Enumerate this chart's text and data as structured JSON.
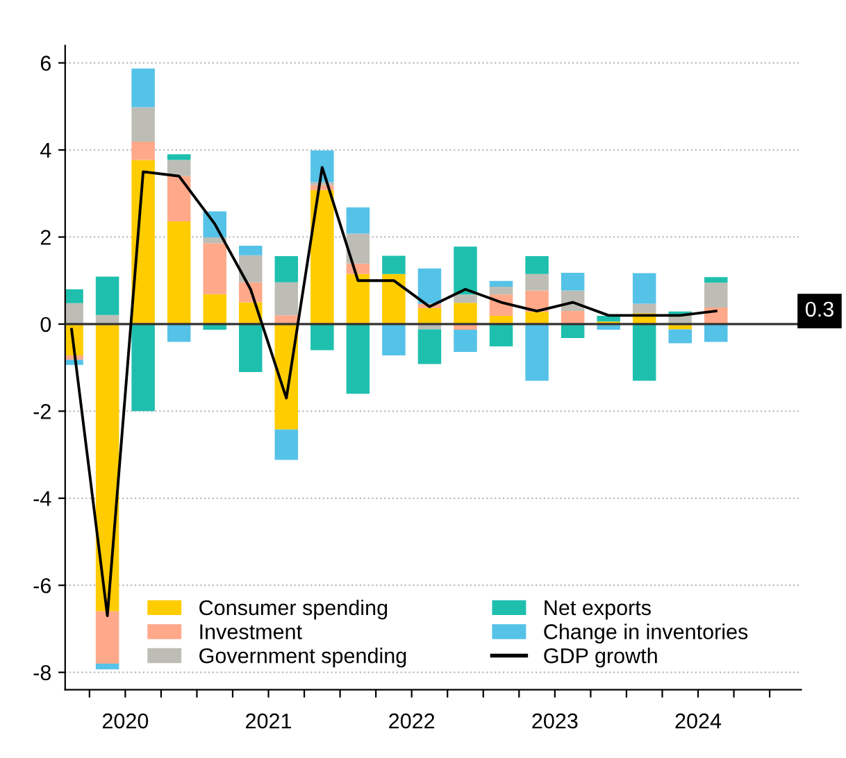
{
  "chart_data": {
    "type": "bar",
    "stacked": true,
    "x": [
      2020.125,
      2020.375,
      2020.625,
      2020.875,
      2021.125,
      2021.375,
      2021.625,
      2021.875,
      2022.125,
      2022.375,
      2022.625,
      2022.875,
      2023.125,
      2023.375,
      2023.625,
      2023.875,
      2024.125,
      2024.375,
      2024.625
    ],
    "series": [
      {
        "name": "Consumer spending",
        "color": "#ffcc00",
        "values": [
          -0.72,
          -6.6,
          3.77,
          2.36,
          0.69,
          0.5,
          -2.42,
          3.08,
          1.15,
          1.15,
          0.37,
          0.49,
          0.19,
          0.28,
          0.0,
          0.06,
          0.25,
          -0.12,
          0.0
        ]
      },
      {
        "name": "Investment",
        "color": "#ffa98a",
        "values": [
          -0.1,
          -1.2,
          0.42,
          1.04,
          1.17,
          0.46,
          0.2,
          0.11,
          0.24,
          0.0,
          0.1,
          -0.13,
          0.49,
          0.49,
          0.3,
          0.0,
          0.0,
          0.0,
          0.38
        ]
      },
      {
        "name": "Government spending",
        "color": "#bdbdb5",
        "values": [
          0.48,
          0.21,
          0.79,
          0.37,
          0.13,
          0.62,
          0.76,
          0.07,
          0.69,
          0.0,
          -0.12,
          0.19,
          0.18,
          0.38,
          0.47,
          0.0,
          0.22,
          0.2,
          0.57
        ]
      },
      {
        "name": "Net exports",
        "color": "#1fbfae",
        "values": [
          0.32,
          0.88,
          -2.0,
          0.13,
          -0.13,
          -1.1,
          0.6,
          -0.6,
          -1.6,
          0.42,
          -0.8,
          1.1,
          -0.51,
          0.41,
          -0.32,
          0.13,
          -1.3,
          0.09,
          0.13
        ]
      },
      {
        "name": "Change in inventories",
        "color": "#55c2e8",
        "values": [
          -0.12,
          -0.13,
          0.89,
          -0.41,
          0.6,
          0.22,
          -0.7,
          0.73,
          0.6,
          -0.72,
          0.81,
          -0.51,
          0.13,
          -1.3,
          0.41,
          -0.13,
          0.7,
          -0.32,
          -0.41
        ]
      },
      {
        "name": "GDP growth",
        "type": "line",
        "color": "#000000",
        "values": [
          -0.12,
          -6.7,
          3.5,
          3.4,
          2.3,
          0.8,
          -1.7,
          3.6,
          1.0,
          1.0,
          0.4,
          0.8,
          0.5,
          0.3,
          0.5,
          0.2,
          0.2,
          0.2,
          0.3
        ]
      }
    ],
    "xlim": [
      2020.08,
      2025.22
    ],
    "xticks": [
      {
        "value": 2020.25,
        "label": null
      },
      {
        "value": 2020.5,
        "label": "2020"
      },
      {
        "value": 2020.75,
        "label": null
      },
      {
        "value": 2021.0,
        "label": null
      },
      {
        "value": 2021.25,
        "label": null
      },
      {
        "value": 2021.5,
        "label": "2021"
      },
      {
        "value": 2021.75,
        "label": null
      },
      {
        "value": 2022.0,
        "label": null
      },
      {
        "value": 2022.25,
        "label": null
      },
      {
        "value": 2022.5,
        "label": "2022"
      },
      {
        "value": 2022.75,
        "label": null
      },
      {
        "value": 2023.0,
        "label": null
      },
      {
        "value": 2023.25,
        "label": null
      },
      {
        "value": 2023.5,
        "label": "2023"
      },
      {
        "value": 2023.75,
        "label": null
      },
      {
        "value": 2024.0,
        "label": null
      },
      {
        "value": 2024.25,
        "label": null
      },
      {
        "value": 2024.5,
        "label": "2024"
      },
      {
        "value": 2024.75,
        "label": null
      },
      {
        "value": 2025.0,
        "label": null
      }
    ],
    "ylim": [
      -8.4,
      6.4
    ],
    "yticks": [
      -8,
      -6,
      -4,
      -2,
      0,
      2,
      4,
      6
    ],
    "ref_lines": [
      {
        "axis": "y",
        "value": 0,
        "color": "#333333"
      }
    ],
    "annotations": [
      {
        "text": "0.3",
        "y": 0.3
      }
    ],
    "grid": "y",
    "legend": "bottom",
    "marker": "none",
    "line_style": "solid"
  }
}
